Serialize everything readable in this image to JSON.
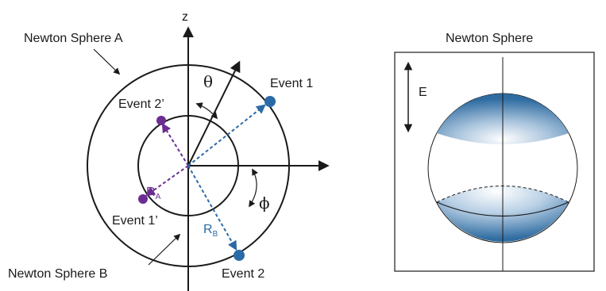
{
  "left_diagram": {
    "axis_z": "z",
    "label_sphere_a": "Newton Sphere A",
    "label_sphere_b": "Newton Sphere B",
    "label_theta": "θ",
    "label_phi": "ϕ",
    "label_event_1": "Event 1",
    "label_event_2": "Event 2",
    "label_event_1p": "Event 1’",
    "label_event_2p": "Event 2’",
    "label_ra_main": "R",
    "label_ra_sub": "A",
    "label_rb_main": "R",
    "label_rb_sub": "B"
  },
  "right_diagram": {
    "title": "Newton Sphere",
    "label_e": "E"
  },
  "colors": {
    "purple": "#6b2d91",
    "blue": "#2a6aa6",
    "cap_dark": "#2f6ca1",
    "cap_light": "#ffffff",
    "line": "#1a1a1a"
  }
}
